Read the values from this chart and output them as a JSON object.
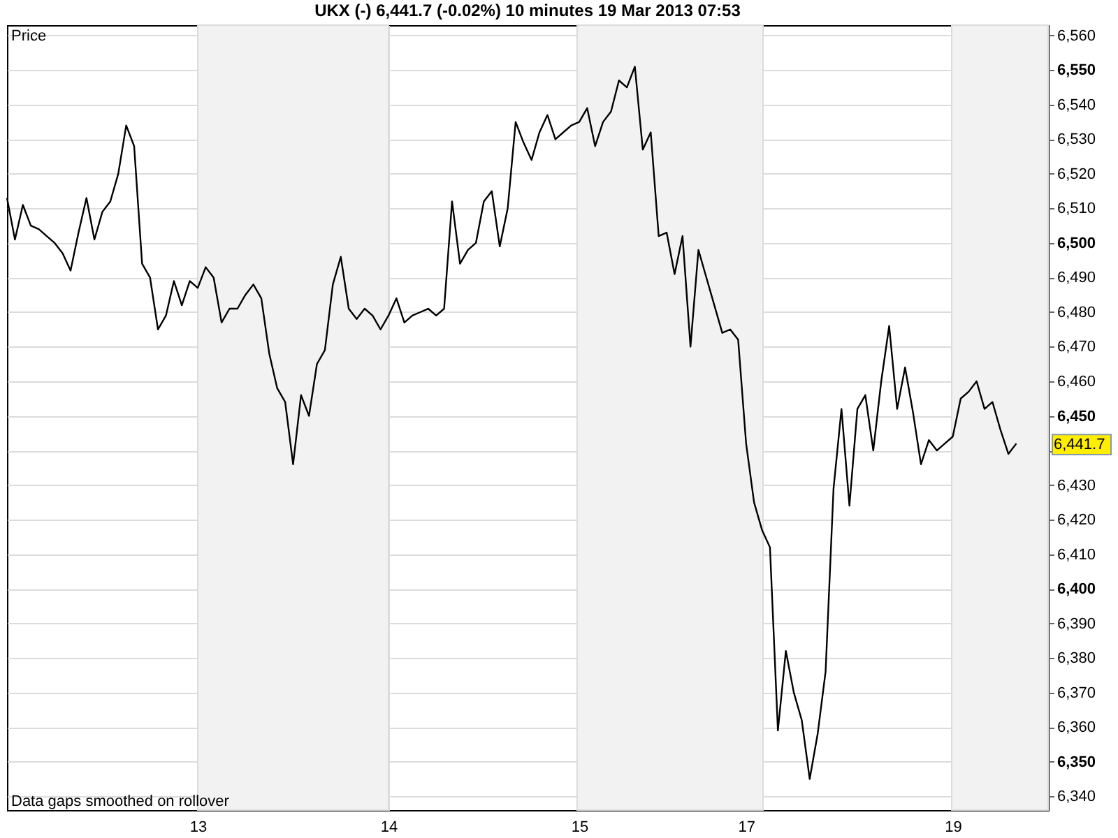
{
  "chart_data": {
    "type": "line",
    "title": "UKX (-) 6,441.7 (-0.02%) 10 minutes 19 Mar 2013 07:53",
    "ylabel": "Price",
    "categories": [
      null,
      null,
      null,
      null,
      null,
      null,
      null,
      null,
      null,
      null,
      null,
      null,
      null,
      null,
      null,
      null,
      null,
      null,
      null,
      null,
      null,
      null,
      null,
      null,
      "13",
      null,
      null,
      null,
      null,
      null,
      null,
      null,
      null,
      null,
      null,
      null,
      null,
      null,
      null,
      null,
      null,
      null,
      null,
      null,
      null,
      null,
      null,
      null,
      "14",
      null,
      null,
      null,
      null,
      null,
      null,
      null,
      null,
      null,
      null,
      null,
      null,
      null,
      null,
      null,
      null,
      null,
      null,
      null,
      null,
      null,
      null,
      null,
      "15",
      null,
      null,
      null,
      null,
      null,
      null,
      null,
      null,
      null,
      null,
      null,
      null,
      null,
      null,
      null,
      null,
      null,
      null,
      null,
      null,
      "17",
      null,
      null,
      null,
      null,
      null,
      null,
      null,
      null,
      null,
      null,
      null,
      null,
      null,
      null,
      null,
      null,
      null,
      null,
      null,
      null,
      null,
      null,
      null,
      null,
      null,
      "19",
      null,
      null,
      null,
      null,
      null,
      null,
      null,
      null,
      null,
      null,
      null,
      null
    ],
    "series": [
      {
        "color": "#000000",
        "values": [
          6513,
          6501,
          6511,
          6505,
          6504,
          6502,
          6500,
          6497,
          6492,
          6503,
          6513,
          6501,
          6509,
          6512,
          6520,
          6534,
          6528,
          6494,
          6490,
          6475,
          6479,
          6489,
          6482,
          6489,
          6487,
          6493,
          6490,
          6477,
          6481,
          6481,
          6485,
          6488,
          6484,
          6468,
          6458,
          6454,
          6436,
          6456,
          6450,
          6465,
          6469,
          6488,
          6496,
          6481,
          6478,
          6481,
          6479,
          6475,
          6479,
          6484,
          6477,
          6479,
          6480,
          6481,
          6479,
          6481,
          6512,
          6494,
          6498,
          6500,
          6512,
          6515,
          6499,
          6510,
          6535,
          6529,
          6524,
          6532,
          6537,
          6530,
          6532,
          6534,
          6535,
          6539,
          6528,
          6535,
          6538,
          6547,
          6545,
          6551,
          6527,
          6532,
          6502,
          6503,
          6491,
          6502,
          6470,
          6498,
          6490,
          6482,
          6474,
          6475,
          6472,
          6442,
          6425,
          6417,
          6412,
          6359,
          6382,
          6370,
          6362,
          6345,
          6358,
          6376,
          6429,
          6452,
          6424,
          6452,
          6456,
          6440,
          6460,
          6476,
          6452,
          6464,
          6451,
          6436,
          6443,
          6440,
          6442,
          6444,
          6455,
          6457,
          6460,
          6452,
          6454,
          6446,
          6439,
          6442,
          null,
          null,
          null,
          null
        ]
      }
    ],
    "ylim": [
      6336,
      6563
    ],
    "yticks": [
      {
        "value": 6340,
        "label": "6,340"
      },
      {
        "value": 6350,
        "label": "6,350"
      },
      {
        "value": 6360,
        "label": "6,360"
      },
      {
        "value": 6370,
        "label": "6,370"
      },
      {
        "value": 6380,
        "label": "6,380"
      },
      {
        "value": 6390,
        "label": "6,390"
      },
      {
        "value": 6400,
        "label": "6,400"
      },
      {
        "value": 6410,
        "label": "6,410"
      },
      {
        "value": 6420,
        "label": "6,420"
      },
      {
        "value": 6430,
        "label": "6,430"
      },
      {
        "value": 6440,
        "label": null
      },
      {
        "value": 6450,
        "label": "6,450"
      },
      {
        "value": 6460,
        "label": "6,460"
      },
      {
        "value": 6470,
        "label": "6,470"
      },
      {
        "value": 6480,
        "label": "6,480"
      },
      {
        "value": 6490,
        "label": "6,490"
      },
      {
        "value": 6500,
        "label": "6,500"
      },
      {
        "value": 6510,
        "label": "6,510"
      },
      {
        "value": 6520,
        "label": "6,520"
      },
      {
        "value": 6530,
        "label": "6,530"
      },
      {
        "value": 6540,
        "label": "6,540"
      },
      {
        "value": 6550,
        "label": "6,550"
      },
      {
        "value": 6560,
        "label": "6,560"
      }
    ],
    "grid": true,
    "bands": [
      {
        "axis": "x",
        "from": "13",
        "to": "14",
        "color": "#f2f2f2"
      }
    ],
    "annotations": [
      {
        "text": "6,441.7",
        "y": 6441.7
      },
      "Data gaps smoothed on rollover"
    ]
  }
}
